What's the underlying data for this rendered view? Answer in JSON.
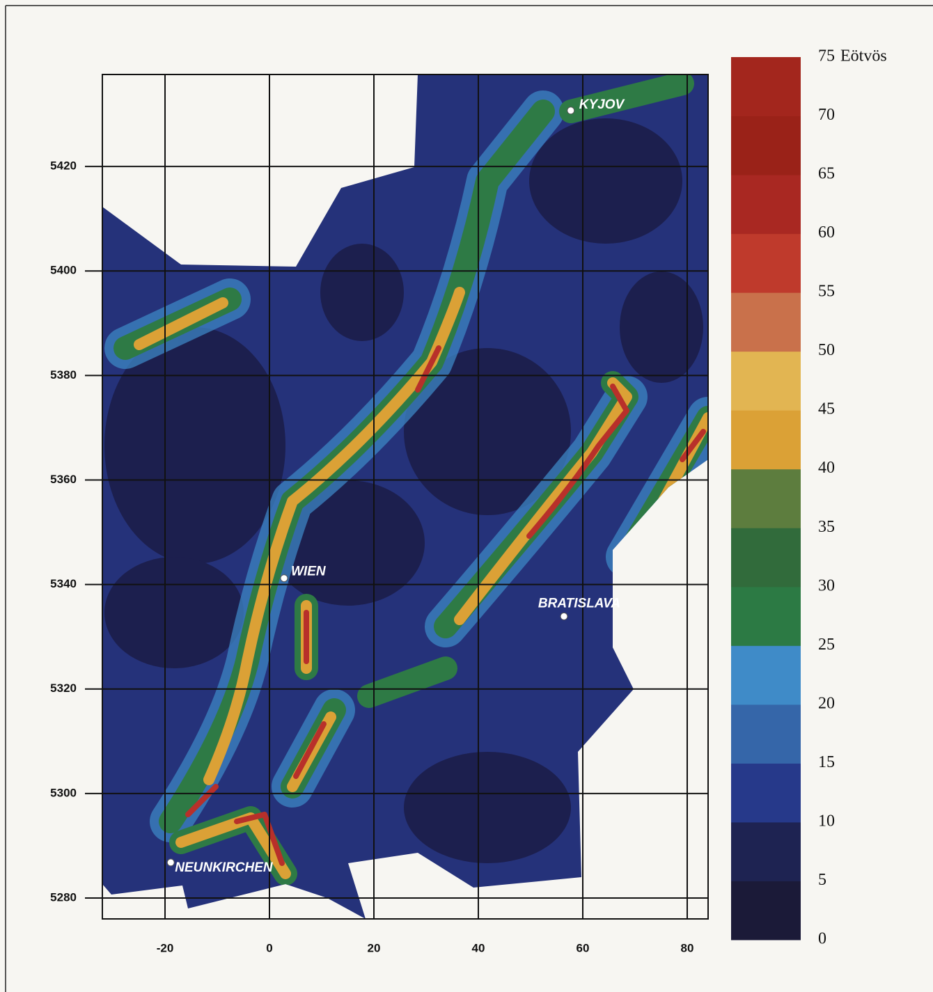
{
  "map": {
    "xlim": [
      -32,
      84
    ],
    "ylim": [
      5276,
      5437.6
    ],
    "xticks": [
      -20,
      0,
      20,
      40,
      60,
      80
    ],
    "yticks": [
      5280,
      5300,
      5320,
      5340,
      5360,
      5380,
      5400,
      5420
    ],
    "cities": [
      {
        "name": "KYJOV",
        "x": 57.7,
        "y": 5430.7
      },
      {
        "name": "WIEN",
        "x": 2.8,
        "y": 5341.2
      },
      {
        "name": "BRATISLAVA",
        "x": 56.4,
        "y": 5333.9
      },
      {
        "name": "NEUNKIRCHEN",
        "x": -18.9,
        "y": 5286.8
      }
    ],
    "colorbar": {
      "ticks": [
        0,
        5,
        10,
        15,
        20,
        25,
        30,
        35,
        40,
        45,
        50,
        55,
        60,
        65,
        70,
        75
      ],
      "unit": "Eötvös",
      "colors": [
        "#1b1a38",
        "#1e2352",
        "#26398a",
        "#3566a9",
        "#3f8bc8",
        "#2c7a44",
        "#316b3b",
        "#5d7d3e",
        "#dba136",
        "#e2b552",
        "#c9714b",
        "#bf3a2c",
        "#a92822",
        "#9a2218",
        "#a3261d"
      ]
    }
  }
}
